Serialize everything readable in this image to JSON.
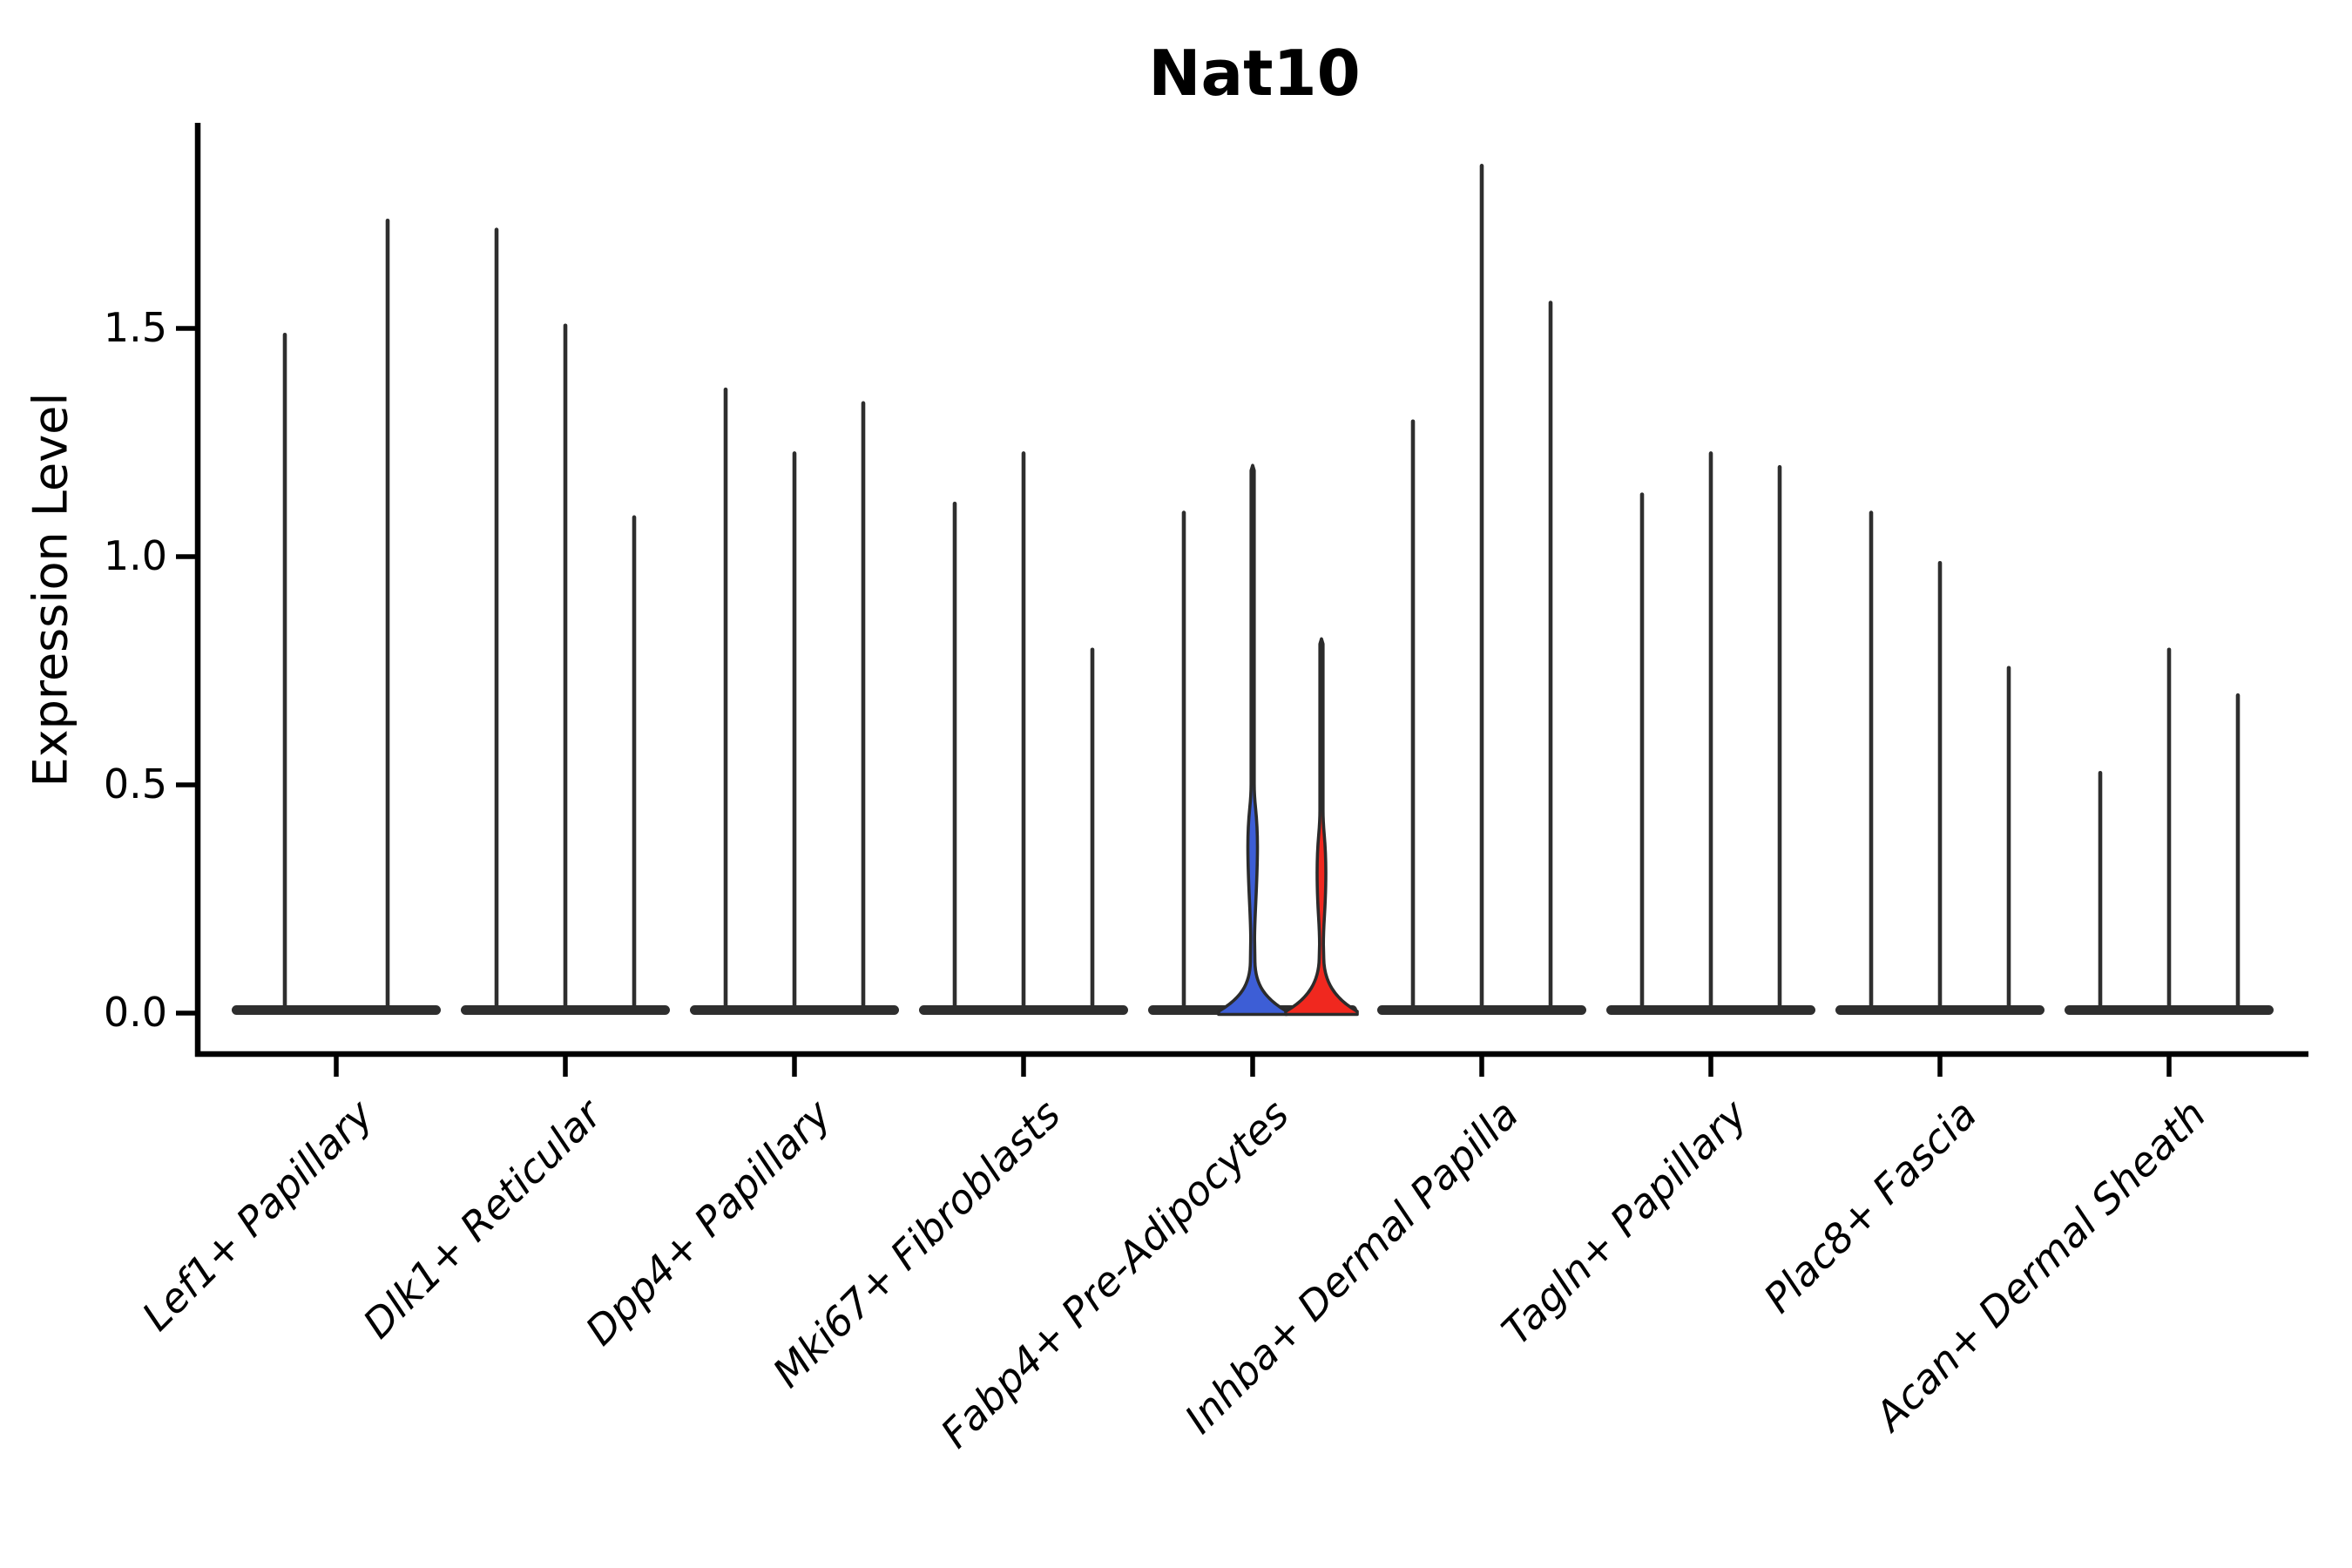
{
  "figure": {
    "title": "Nat10",
    "y_axis": {
      "label": "Expression Level",
      "tick_labels": [
        "0.0",
        "0.5",
        "1.0",
        "1.5"
      ],
      "tick_values": [
        0.0,
        0.5,
        1.0,
        1.5
      ]
    },
    "x_axis": {
      "categories": [
        "Lef1+ Papillary",
        "Dlk1+ Reticular",
        "Dpp4+ Papillary",
        "Mki67+ Fibroblasts",
        "Fabp4+ Pre-Adipocytes",
        "Inhba+ Dermal Papilla",
        "Tagln+ Papillary",
        "Plac8+ Fascia",
        "Acan+ Dermal Sheath"
      ]
    }
  },
  "chart_data": {
    "type": "violin",
    "title": "Nat10",
    "xlabel": "",
    "ylabel": "Expression Level",
    "ylim": [
      -0.09,
      1.95
    ],
    "yticks": [
      0,
      0.5,
      1.0,
      1.5
    ],
    "grid": false,
    "legend_position": "none",
    "categories": [
      "Lef1+ Papillary",
      "Dlk1+ Reticular",
      "Dpp4+ Papillary",
      "Mki67+ Fibroblasts",
      "Fabp4+ Pre-Adipocytes",
      "Inhba+ Dermal Papilla",
      "Tagln+ Papillary",
      "Plac8+ Fascia",
      "Acan+ Dermal Sheath"
    ],
    "violins": [
      {
        "category": "Lef1+ Papillary",
        "spike_max_values": [
          1.49,
          1.74
        ],
        "fills": [
          "none",
          "none"
        ]
      },
      {
        "category": "Dlk1+ Reticular",
        "spike_max_values": [
          1.72,
          1.51,
          1.09
        ],
        "fills": [
          "none",
          "none",
          "none"
        ]
      },
      {
        "category": "Dpp4+ Papillary",
        "spike_max_values": [
          1.37,
          1.23,
          1.34
        ],
        "fills": [
          "none",
          "none",
          "none"
        ]
      },
      {
        "category": "Mki67+ Fibroblasts",
        "spike_max_values": [
          1.12,
          1.23,
          0.8
        ],
        "fills": [
          "none",
          "none",
          "none"
        ]
      },
      {
        "category": "Fabp4+ Pre-Adipocytes",
        "spike_max_values": [
          1.1,
          1.2,
          0.82
        ],
        "fills": [
          "none",
          "#3D5ED6",
          "#F0281F"
        ]
      },
      {
        "category": "Inhba+ Dermal Papilla",
        "spike_max_values": [
          1.3,
          1.86,
          1.56
        ],
        "fills": [
          "none",
          "none",
          "none"
        ]
      },
      {
        "category": "Tagln+ Papillary",
        "spike_max_values": [
          1.14,
          1.23,
          1.2
        ],
        "fills": [
          "none",
          "none",
          "none"
        ]
      },
      {
        "category": "Plac8+ Fascia",
        "spike_max_values": [
          1.1,
          0.99,
          0.76
        ],
        "fills": [
          "none",
          "none",
          "none"
        ]
      },
      {
        "category": "Acan+ Dermal Sheath",
        "spike_max_values": [
          0.53,
          0.8,
          0.7
        ],
        "fills": [
          "none",
          "none",
          "none"
        ]
      }
    ],
    "notes": "All violins have their density mass concentrated at 0 (flat dark bases) with thin spikes up to the max expression value; the Fabp4+ Pre-Adipocytes group contains one blue-filled and one red-filled violin.",
    "colors": {
      "violin_stroke": "#2e2e2e",
      "highlight_blue": "#3D5ED6",
      "highlight_red": "#F0281F",
      "axis": "#000000",
      "background": "#ffffff"
    }
  }
}
